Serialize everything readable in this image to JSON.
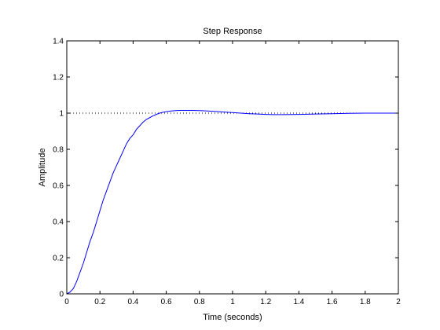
{
  "chart_data": {
    "type": "line",
    "title": "Step Response",
    "xlabel": "Time (seconds)",
    "ylabel": "Amplitude",
    "xlim": [
      0,
      2
    ],
    "ylim": [
      0,
      1.4
    ],
    "xticks": [
      0,
      0.2,
      0.4,
      0.6,
      0.8,
      1,
      1.2,
      1.4,
      1.6,
      1.8,
      2
    ],
    "xtick_labels": [
      "0",
      "0.2",
      "0.4",
      "0.6",
      "0.8",
      "1",
      "1.2",
      "1.4",
      "1.6",
      "1.8",
      "2"
    ],
    "yticks": [
      0,
      0.2,
      0.4,
      0.6,
      0.8,
      1,
      1.2,
      1.4
    ],
    "ytick_labels": [
      "0",
      "0.2",
      "0.4",
      "0.6",
      "0.8",
      "1",
      "1.2",
      "1.4"
    ],
    "grid": false,
    "reference_line": {
      "y": 1,
      "style": "dotted",
      "color": "#000000"
    },
    "series": [
      {
        "color": "#0000ff",
        "x": [
          0,
          0.02,
          0.04,
          0.06,
          0.08,
          0.1,
          0.12,
          0.14,
          0.16,
          0.18,
          0.2,
          0.22,
          0.24,
          0.26,
          0.28,
          0.3,
          0.32,
          0.34,
          0.36,
          0.38,
          0.4,
          0.42,
          0.44,
          0.46,
          0.48,
          0.5,
          0.52,
          0.54,
          0.56,
          0.58,
          0.6,
          0.62,
          0.64,
          0.66,
          0.68,
          0.7,
          0.72,
          0.75,
          0.8,
          0.85,
          0.9,
          0.95,
          1,
          1.05,
          1.1,
          1.15,
          1.2,
          1.25,
          1.3,
          1.4,
          1.5,
          1.6,
          1.7,
          1.8,
          1.9,
          2
        ],
        "y": [
          0,
          0.01,
          0.03,
          0.07,
          0.12,
          0.17,
          0.23,
          0.29,
          0.34,
          0.4,
          0.46,
          0.52,
          0.57,
          0.62,
          0.67,
          0.71,
          0.75,
          0.79,
          0.83,
          0.86,
          0.88,
          0.91,
          0.93,
          0.95,
          0.965,
          0.975,
          0.985,
          0.993,
          1.0,
          1.005,
          1.008,
          1.011,
          1.013,
          1.014,
          1.015,
          1.015,
          1.015,
          1.015,
          1.014,
          1.012,
          1.009,
          1.006,
          1.003,
          1.0,
          0.997,
          0.995,
          0.993,
          0.992,
          0.992,
          0.993,
          0.995,
          0.997,
          0.999,
          1.0,
          1.0,
          1.0
        ]
      }
    ]
  }
}
